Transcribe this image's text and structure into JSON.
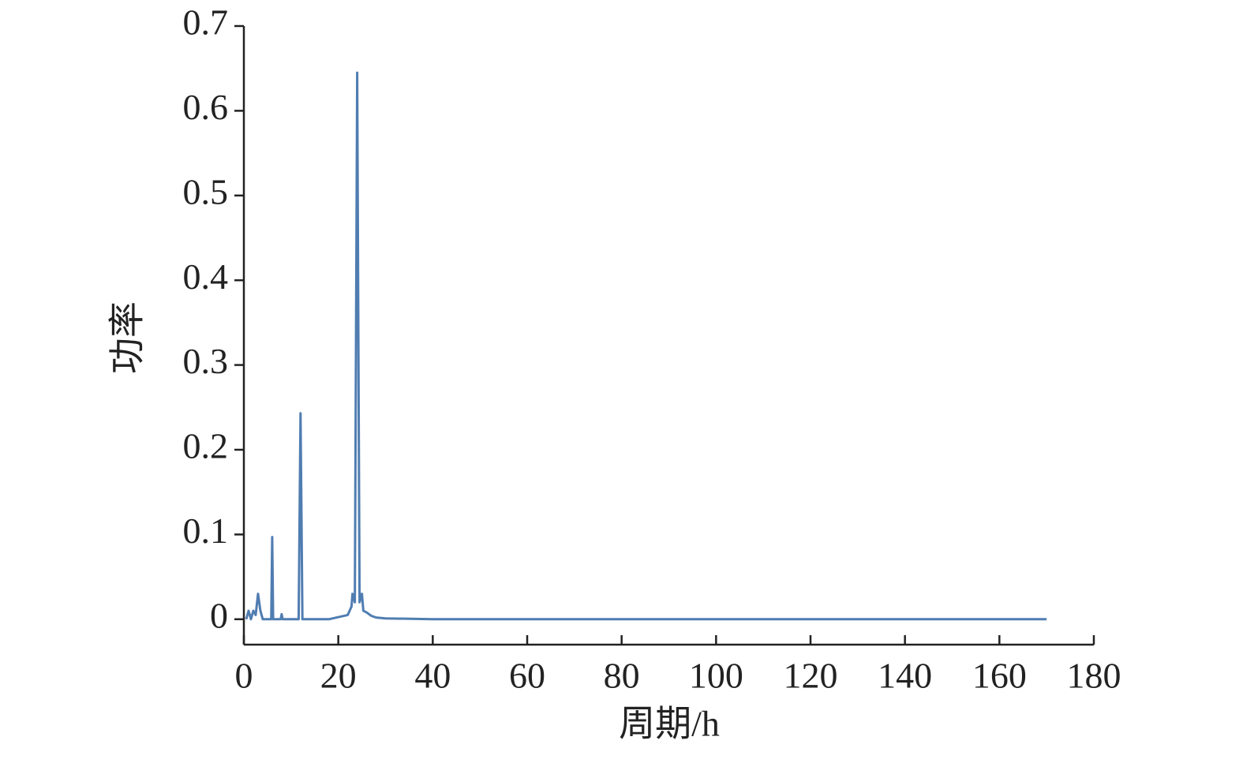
{
  "chart_data": {
    "type": "line",
    "x_label": "周期/h",
    "y_label": "功率",
    "x": [
      0.5,
      1,
      1.5,
      2,
      2.5,
      3,
      3.5,
      4,
      5,
      5.8,
      6,
      6.2,
      7,
      7.8,
      8,
      8.2,
      10,
      11.6,
      12,
      12.4,
      14,
      18,
      22,
      22.8,
      23,
      23.5,
      24,
      24.5,
      25,
      25.3,
      26,
      27,
      28,
      30,
      40,
      60,
      100,
      170
    ],
    "values": [
      0,
      0.01,
      0,
      0.01,
      0.005,
      0.03,
      0.01,
      0,
      0,
      0,
      0.097,
      0,
      0,
      0,
      0.006,
      0,
      0,
      0,
      0.243,
      0,
      0,
      0,
      0.005,
      0.015,
      0.03,
      0.02,
      0.645,
      0.02,
      0.03,
      0.01,
      0.008,
      0.004,
      0.002,
      0.001,
      0,
      0,
      0,
      0
    ],
    "color": "#3d6fa8",
    "xlim": [
      0,
      180
    ],
    "xticks": [
      0,
      20,
      40,
      60,
      80,
      100,
      120,
      140,
      160,
      180
    ],
    "ylim": [
      -0.03,
      0.7
    ],
    "yticks": [
      0,
      0.1,
      0.2,
      0.3,
      0.4,
      0.5,
      0.6,
      0.7
    ],
    "grid": false
  }
}
